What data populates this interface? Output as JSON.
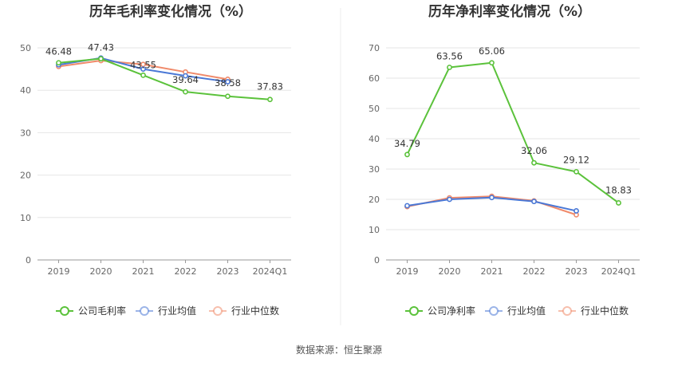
{
  "source_text": "数据来源：恒生聚源",
  "chart_data": [
    {
      "type": "line",
      "title": "历年毛利率变化情况（%）",
      "categories": [
        "2019",
        "2020",
        "2021",
        "2022",
        "2023",
        "2024Q1"
      ],
      "ylim": [
        0,
        50
      ],
      "yticks": [
        0,
        10,
        20,
        30,
        40,
        50
      ],
      "grid": true,
      "legend_position": "bottom",
      "series": [
        {
          "name": "公司毛利率",
          "color": "#5bc23b",
          "values": [
            46.48,
            47.43,
            43.55,
            39.64,
            38.58,
            37.83
          ],
          "labels": [
            "46.48",
            "47.43",
            "43.55",
            "39.64",
            "38.58",
            "37.83"
          ]
        },
        {
          "name": "行业均值",
          "color": "#4a78d6",
          "values": [
            46.0,
            47.6,
            45.0,
            43.4,
            42.0,
            null
          ]
        },
        {
          "name": "行业中位数",
          "color": "#f08a6a",
          "values": [
            45.6,
            47.0,
            46.1,
            44.3,
            42.6,
            null
          ]
        }
      ]
    },
    {
      "type": "line",
      "title": "历年净利率变化情况（%）",
      "categories": [
        "2019",
        "2020",
        "2021",
        "2022",
        "2023",
        "2024Q1"
      ],
      "ylim": [
        0,
        70
      ],
      "yticks": [
        0,
        10,
        20,
        30,
        40,
        50,
        60,
        70
      ],
      "grid": true,
      "legend_position": "bottom",
      "series": [
        {
          "name": "公司净利率",
          "color": "#5bc23b",
          "values": [
            34.79,
            63.56,
            65.06,
            32.06,
            29.12,
            18.83
          ],
          "labels": [
            "34.79",
            "63.56",
            "65.06",
            "32.06",
            "29.12",
            "18.83"
          ]
        },
        {
          "name": "行业均值",
          "color": "#4a78d6",
          "values": [
            17.9,
            20.0,
            20.6,
            19.3,
            16.2,
            null
          ]
        },
        {
          "name": "行业中位数",
          "color": "#f08a6a",
          "values": [
            17.6,
            20.5,
            21.0,
            19.5,
            14.9,
            null
          ]
        }
      ]
    }
  ]
}
